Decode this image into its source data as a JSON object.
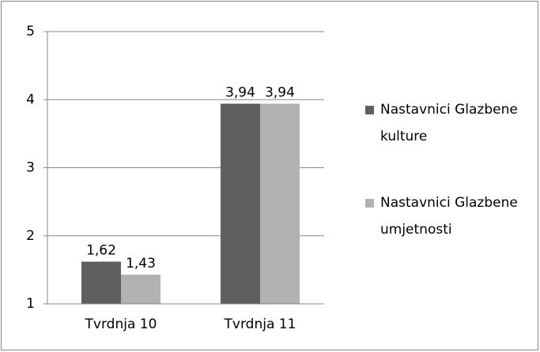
{
  "chart_data": {
    "type": "bar",
    "categories": [
      "Tvrdnja 10",
      "Tvrdnja 11"
    ],
    "series": [
      {
        "name": "Nastavnici Glazbene kulture",
        "color": "#5f5f5f",
        "values": [
          1.62,
          3.94
        ],
        "value_labels": [
          "1,62",
          "3,94"
        ]
      },
      {
        "name": "Nastavnici Glazbene umjetnosti",
        "color": "#b2b2b2",
        "values": [
          1.43,
          3.94
        ],
        "value_labels": [
          "1,43",
          "3,94"
        ]
      }
    ],
    "ylim": [
      1,
      5
    ],
    "yticks": [
      1,
      2,
      3,
      4,
      5
    ],
    "grid": true,
    "legend": "right"
  }
}
